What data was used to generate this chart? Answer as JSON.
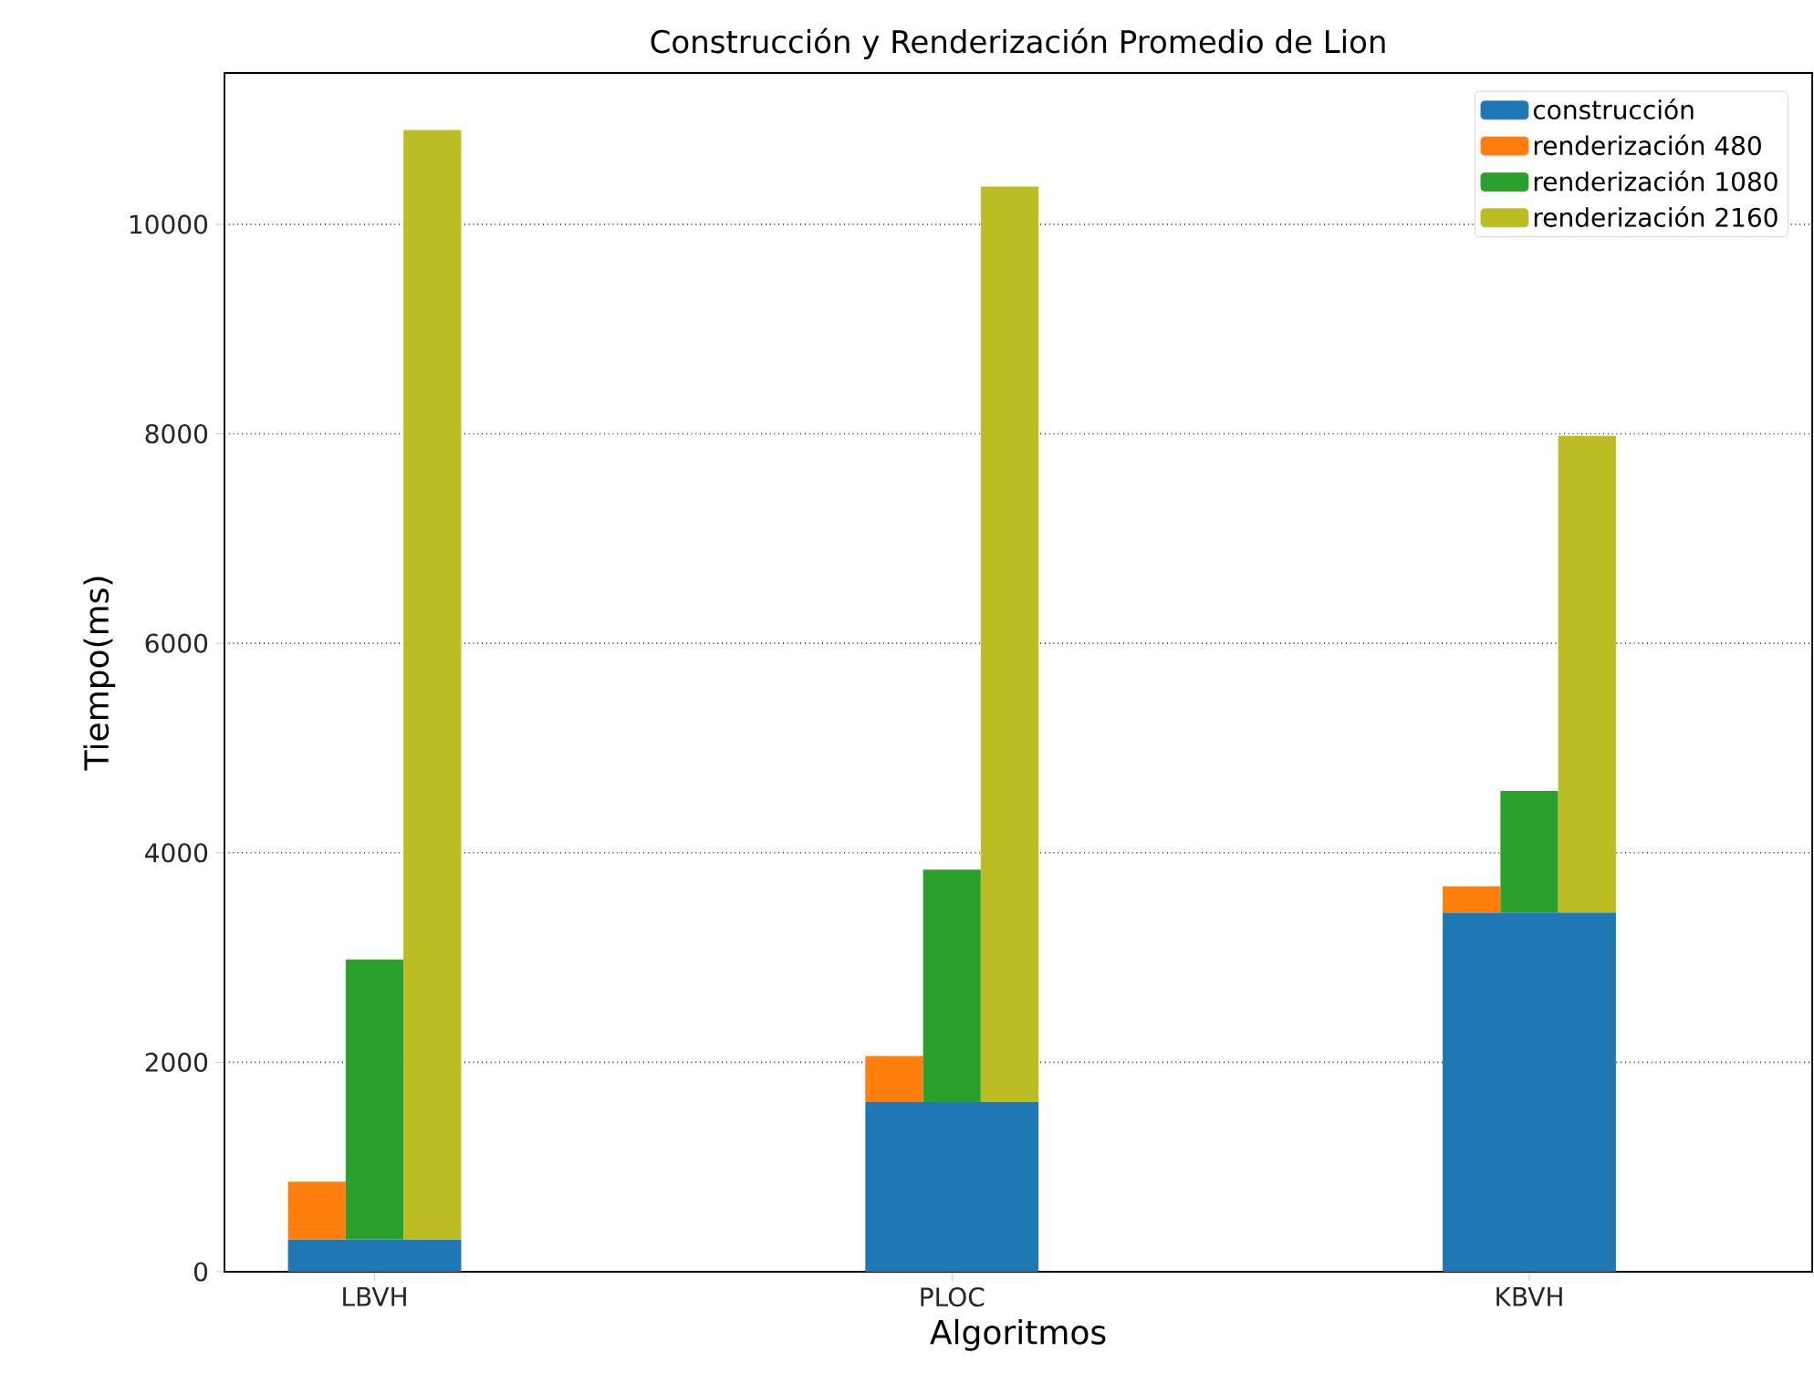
{
  "chart_data": {
    "type": "bar",
    "title": "Construcción y Renderización Promedio de Lion",
    "xlabel": "Algoritmos",
    "ylabel": "Tiempo(ms)",
    "categories": [
      "LBVH",
      "PLOC",
      "KBVH"
    ],
    "series": [
      {
        "name": "construcción",
        "color": "#1f77b4",
        "values": [
          310,
          1620,
          3430
        ]
      },
      {
        "name": "renderización 480",
        "color": "#ff7f0e",
        "values": [
          550,
          440,
          250
        ],
        "base": [
          310,
          1620,
          3430
        ]
      },
      {
        "name": "renderización 1080",
        "color": "#2ca02c",
        "values": [
          2670,
          2220,
          1160
        ],
        "base": [
          310,
          1620,
          3430
        ]
      },
      {
        "name": "renderización 2160",
        "color": "#bcbd22",
        "values": [
          10590,
          8740,
          4550
        ],
        "base": [
          310,
          1620,
          3430
        ]
      }
    ],
    "ylim": [
      0,
      11445
    ],
    "yticks": [
      0,
      2000,
      4000,
      6000,
      8000,
      10000
    ],
    "grid": "y",
    "legend": "top right"
  }
}
